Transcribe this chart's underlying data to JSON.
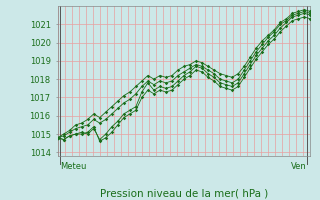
{
  "title": "Pression niveau de la mer( hPa )",
  "xlabel_left": "Meteu",
  "xlabel_right": "Ven",
  "ylim": [
    1013.8,
    1022.0
  ],
  "yticks": [
    1014,
    1015,
    1016,
    1017,
    1018,
    1019,
    1020,
    1021
  ],
  "background_color": "#cce8e8",
  "grid_color_v": "#e8a0a0",
  "grid_color_h": "#e8a0a0",
  "line_color": "#1a6e1a",
  "marker_color": "#1a6e1a",
  "label_color": "#1a6e1a",
  "n_vert_grid": 36,
  "series": [
    [
      1014.8,
      1014.7,
      1014.9,
      1015.0,
      1015.1,
      1015.0,
      1015.3,
      1014.7,
      1015.0,
      1015.4,
      1015.7,
      1016.1,
      1016.3,
      1016.5,
      1017.3,
      1017.8,
      1017.4,
      1017.6,
      1017.5,
      1017.6,
      1017.9,
      1018.2,
      1018.4,
      1018.7,
      1018.6,
      1018.3,
      1018.1,
      1017.8,
      1017.7,
      1017.6,
      1017.8,
      1018.3,
      1018.8,
      1019.3,
      1019.7,
      1020.1,
      1020.4,
      1020.8,
      1021.1,
      1021.4,
      1021.5,
      1021.6,
      1021.5
    ],
    [
      1014.8,
      1014.7,
      1014.9,
      1015.0,
      1015.0,
      1015.1,
      1015.4,
      1014.6,
      1014.8,
      1015.1,
      1015.5,
      1015.9,
      1016.1,
      1016.3,
      1017.0,
      1017.4,
      1017.2,
      1017.4,
      1017.3,
      1017.4,
      1017.7,
      1018.0,
      1018.2,
      1018.5,
      1018.4,
      1018.1,
      1017.9,
      1017.6,
      1017.5,
      1017.4,
      1017.6,
      1018.1,
      1018.6,
      1019.1,
      1019.5,
      1019.9,
      1020.2,
      1020.6,
      1020.9,
      1021.2,
      1021.3,
      1021.4,
      1021.3
    ],
    [
      1014.8,
      1014.9,
      1015.1,
      1015.3,
      1015.4,
      1015.5,
      1015.8,
      1015.6,
      1015.8,
      1016.1,
      1016.4,
      1016.7,
      1016.9,
      1017.2,
      1017.6,
      1017.9,
      1017.7,
      1017.9,
      1017.8,
      1017.9,
      1018.2,
      1018.4,
      1018.6,
      1018.8,
      1018.7,
      1018.5,
      1018.3,
      1018.0,
      1017.9,
      1017.8,
      1018.0,
      1018.5,
      1019.0,
      1019.5,
      1019.9,
      1020.3,
      1020.6,
      1021.0,
      1021.2,
      1021.5,
      1021.6,
      1021.7,
      1021.6
    ],
    [
      1014.8,
      1015.0,
      1015.2,
      1015.5,
      1015.6,
      1015.8,
      1016.1,
      1015.9,
      1016.2,
      1016.5,
      1016.8,
      1017.1,
      1017.3,
      1017.6,
      1017.9,
      1018.2,
      1018.0,
      1018.2,
      1018.1,
      1018.2,
      1018.5,
      1018.7,
      1018.8,
      1019.0,
      1018.9,
      1018.7,
      1018.5,
      1018.3,
      1018.2,
      1018.1,
      1018.3,
      1018.7,
      1019.2,
      1019.7,
      1020.1,
      1020.4,
      1020.7,
      1021.1,
      1021.3,
      1021.6,
      1021.7,
      1021.8,
      1021.7
    ]
  ]
}
